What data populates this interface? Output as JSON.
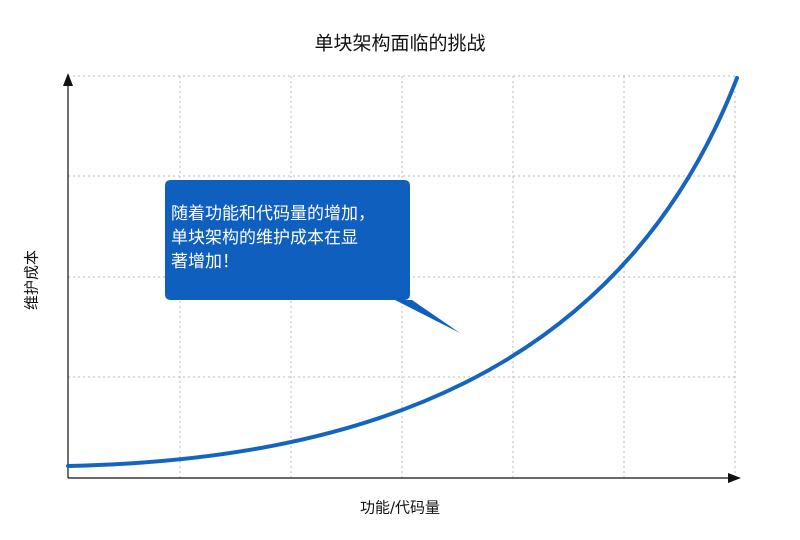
{
  "title": "单块架构面临的挑战",
  "x_axis_label": "功能/代码量",
  "y_axis_label": "维护成本",
  "callout": {
    "lines": [
      "随着功能和代码量的增加，",
      "单块架构的维护成本在显",
      "著增加！"
    ]
  }
}
